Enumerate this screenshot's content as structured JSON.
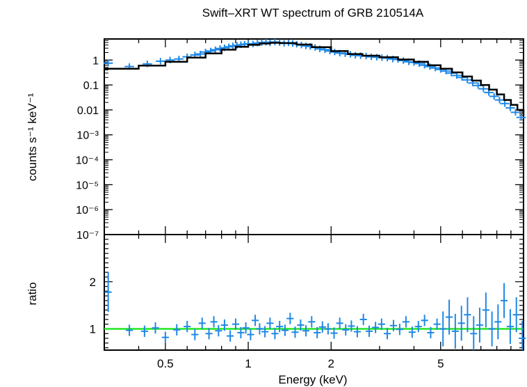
{
  "chart_data": [
    {
      "type": "scatter",
      "panel": "spectrum",
      "title": "Swift–XRT WT spectrum of GRB 210514A",
      "xlabel": "Energy (keV)",
      "ylabel": "counts s⁻¹ keV⁻¹",
      "xscale": "log",
      "yscale": "log",
      "xlim": [
        0.3,
        10
      ],
      "ylim": [
        1e-07,
        7
      ],
      "y_tick_labels": [
        "1",
        "0.1",
        "0.01",
        "10⁻³",
        "10⁻⁴",
        "10⁻⁵",
        "10⁻⁶",
        "10⁻⁷"
      ],
      "y_tick_values": [
        1,
        0.1,
        0.01,
        0.001,
        0.0001,
        1e-05,
        1e-06,
        1e-07
      ],
      "grid": false,
      "colors": {
        "data": "#1e88e5",
        "model": "#000000"
      },
      "series": [
        {
          "kind": "model",
          "x": [
            0.3,
            0.4,
            0.5,
            0.6,
            0.7,
            0.8,
            0.9,
            1.0,
            1.1,
            1.2,
            1.3,
            1.5,
            1.7,
            2.0,
            2.3,
            2.6,
            3.0,
            3.5,
            4.0,
            4.5,
            5.0,
            5.5,
            6.0,
            6.5,
            7.0,
            7.5,
            8.0,
            8.5,
            9.0,
            9.5,
            10.0
          ],
          "y": [
            0.45,
            0.6,
            0.85,
            1.25,
            1.85,
            2.6,
            3.4,
            4.1,
            4.6,
            4.9,
            4.8,
            4.2,
            3.3,
            2.3,
            1.75,
            1.5,
            1.3,
            1.05,
            0.85,
            0.62,
            0.45,
            0.32,
            0.22,
            0.15,
            0.1,
            0.065,
            0.042,
            0.025,
            0.016,
            0.01,
            0.006
          ]
        },
        {
          "kind": "data",
          "x": [
            0.31,
            0.37,
            0.43,
            0.48,
            0.52,
            0.56,
            0.6,
            0.64,
            0.67,
            0.7,
            0.73,
            0.76,
            0.79,
            0.82,
            0.85,
            0.88,
            0.91,
            0.94,
            0.97,
            1.0,
            1.04,
            1.08,
            1.12,
            1.16,
            1.2,
            1.25,
            1.3,
            1.35,
            1.4,
            1.45,
            1.5,
            1.56,
            1.62,
            1.68,
            1.75,
            1.82,
            1.9,
            1.98,
            2.06,
            2.15,
            2.25,
            2.35,
            2.45,
            2.56,
            2.68,
            2.8,
            2.93,
            3.06,
            3.2,
            3.35,
            3.5,
            3.66,
            3.83,
            4.0,
            4.18,
            4.37,
            4.57,
            4.78,
            5.0,
            5.23,
            5.47,
            5.72,
            5.98,
            6.25,
            6.54,
            6.84,
            7.15,
            7.48,
            7.82,
            8.18,
            8.55,
            8.95,
            9.35,
            9.8
          ],
          "y": [
            0.75,
            0.55,
            0.7,
            0.9,
            1.0,
            1.1,
            1.35,
            1.6,
            1.75,
            2.1,
            2.3,
            2.6,
            2.9,
            3.1,
            3.4,
            3.7,
            3.9,
            4.1,
            4.3,
            4.5,
            4.4,
            4.8,
            5.0,
            5.2,
            4.9,
            5.3,
            5.0,
            4.7,
            4.9,
            4.6,
            4.3,
            4.0,
            3.7,
            3.5,
            3.2,
            2.8,
            2.6,
            2.3,
            2.1,
            1.9,
            1.8,
            1.7,
            1.55,
            1.5,
            1.45,
            1.35,
            1.3,
            1.25,
            1.2,
            1.1,
            1.05,
            0.95,
            0.85,
            0.8,
            0.72,
            0.62,
            0.55,
            0.48,
            0.42,
            0.36,
            0.3,
            0.24,
            0.2,
            0.16,
            0.12,
            0.095,
            0.07,
            0.05,
            0.035,
            0.025,
            0.018,
            0.012,
            0.008,
            0.005
          ]
        }
      ]
    },
    {
      "type": "scatter",
      "panel": "ratio",
      "xlabel": "Energy (keV)",
      "ylabel": "ratio",
      "xscale": "log",
      "yscale": "linear",
      "xlim": [
        0.3,
        10
      ],
      "ylim": [
        0.55,
        3.0
      ],
      "x_tick_labels": [
        "0.5",
        "1",
        "2",
        "5"
      ],
      "x_tick_values": [
        0.5,
        1,
        2,
        5
      ],
      "y_tick_labels": [
        "1",
        "2"
      ],
      "y_tick_values": [
        1,
        2
      ],
      "grid": false,
      "colors": {
        "data": "#1e88e5",
        "reference": "#22e622"
      },
      "reference_line": 1,
      "series": [
        {
          "kind": "data",
          "x": [
            0.31,
            0.37,
            0.42,
            0.46,
            0.5,
            0.55,
            0.6,
            0.64,
            0.68,
            0.72,
            0.75,
            0.78,
            0.82,
            0.86,
            0.9,
            0.94,
            0.98,
            1.02,
            1.06,
            1.1,
            1.15,
            1.2,
            1.25,
            1.3,
            1.36,
            1.42,
            1.48,
            1.55,
            1.62,
            1.7,
            1.78,
            1.86,
            1.95,
            2.05,
            2.15,
            2.26,
            2.37,
            2.49,
            2.62,
            2.75,
            2.9,
            3.05,
            3.2,
            3.37,
            3.55,
            3.74,
            3.94,
            4.15,
            4.37,
            4.6,
            4.85,
            5.1,
            5.37,
            5.65,
            5.95,
            6.26,
            6.59,
            6.93,
            7.3,
            7.68,
            8.08,
            8.5,
            8.95,
            9.42,
            9.9
          ],
          "y": [
            1.78,
            0.97,
            0.95,
            1.02,
            0.82,
            0.98,
            1.05,
            0.88,
            1.12,
            0.9,
            1.15,
            0.96,
            1.08,
            0.85,
            1.1,
            0.92,
            1.02,
            0.88,
            1.18,
            1.0,
            0.94,
            1.12,
            0.9,
            1.05,
            0.97,
            1.22,
            0.93,
            1.08,
            0.96,
            1.15,
            0.92,
            1.04,
            1.0,
            0.91,
            1.12,
            0.98,
            1.06,
            0.94,
            1.2,
            0.95,
            1.03,
            1.1,
            0.9,
            1.07,
            0.99,
            1.15,
            0.93,
            1.05,
            1.18,
            0.92,
            1.1,
            1.0,
            1.25,
            0.95,
            1.12,
            1.3,
            0.9,
            1.08,
            1.4,
            1.0,
            1.15,
            1.6,
            1.05,
            1.3,
            0.8
          ]
        }
      ]
    }
  ]
}
